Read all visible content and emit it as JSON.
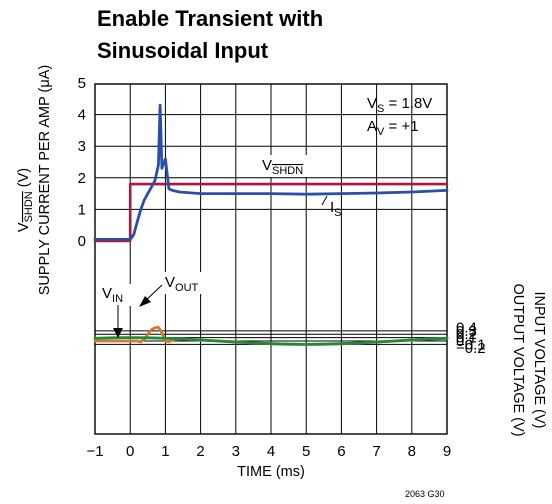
{
  "chart_data": {
    "type": "line",
    "title_lines": [
      "Enable Transient with",
      "Sinusoidal Input"
    ],
    "xlabel": "TIME (ms)",
    "xlim": [
      -1,
      9
    ],
    "x_ticks": [
      "−1",
      "0",
      "1",
      "2",
      "3",
      "4",
      "5",
      "6",
      "7",
      "8",
      "9"
    ],
    "y_left": {
      "label_top": {
        "pre": "V",
        "sub": "SHDN",
        "post": " (V)"
      },
      "label_bottom": "SUPPLY CURRENT PER AMP (μA)",
      "ticks": [
        "0",
        "1",
        "2",
        "3",
        "4",
        "5"
      ],
      "range": [
        0,
        5
      ]
    },
    "y_right": {
      "label_top": "INPUT VOLTAGE (V)",
      "label_bottom": "OUTPUT VOLTAGE (V)",
      "ticks": [
        "0.4",
        "0.3",
        "0.2",
        "0.1",
        "0",
        "−0.1",
        "−0.2"
      ],
      "range": [
        -0.2,
        0.4
      ]
    },
    "grid": true,
    "conditions": {
      "vs": {
        "pre": "V",
        "sub": "S",
        "post": " = 1.8V"
      },
      "av": {
        "pre": "A",
        "sub": "V",
        "post": " = +1"
      }
    },
    "annotations": {
      "vshdn": {
        "pre": "V",
        "sub": "SHDN"
      },
      "is": {
        "pre": "I",
        "sub": "S"
      },
      "vin": {
        "pre": "V",
        "sub": "IN"
      },
      "vout": {
        "pre": "V",
        "sub": "OUT"
      }
    },
    "series": [
      {
        "key": "vshdn",
        "axis": "left",
        "color": "#b0143c",
        "x": [
          -1,
          0,
          0,
          9
        ],
        "y": [
          0,
          0,
          1.8,
          1.8
        ]
      },
      {
        "key": "is",
        "axis": "left",
        "color": "#2a4fa8",
        "x": [
          -1,
          -0.5,
          0,
          0.1,
          0.2,
          0.3,
          0.4,
          0.5,
          0.6,
          0.7,
          0.8,
          0.85,
          0.9,
          1.0,
          1.1,
          1.2,
          1.4,
          2,
          3,
          4,
          5,
          6,
          7,
          8,
          9
        ],
        "y": [
          0.05,
          0.05,
          0.05,
          0.2,
          0.6,
          1.0,
          1.3,
          1.5,
          1.7,
          1.9,
          2.4,
          4.3,
          2.3,
          2.6,
          1.65,
          1.6,
          1.55,
          1.5,
          1.5,
          1.5,
          1.48,
          1.5,
          1.52,
          1.55,
          1.6
        ]
      },
      {
        "key": "vin",
        "axis": "right",
        "color": "#1f8a3a",
        "x": [
          -1,
          -0.5,
          0,
          0.5,
          1,
          1.5,
          2,
          2.5,
          3,
          3.5,
          4,
          4.5,
          5,
          5.5,
          6,
          6.5,
          7,
          7.5,
          8,
          8.5,
          9
        ],
        "y": [
          0.081,
          0.095,
          0.1,
          0.095,
          0.081,
          0.059,
          0.031,
          0,
          -0.031,
          -0.059,
          -0.081,
          -0.095,
          -0.1,
          -0.095,
          -0.081,
          -0.059,
          -0.031,
          0,
          0.031,
          0.059,
          0.081
        ]
      },
      {
        "key": "vout",
        "axis": "right",
        "color": "#d07a2a",
        "x": [
          -1,
          0.2,
          0.3,
          0.35,
          0.4,
          0.5,
          0.6,
          0.7,
          0.78,
          0.82,
          0.9,
          1.0,
          1.1,
          1.2,
          1.3,
          1.5,
          2,
          2.5,
          3,
          3.5,
          4,
          4.5,
          5,
          5.5,
          6,
          6.5,
          7,
          7.5,
          8,
          8.5,
          9
        ],
        "y": [
          0,
          0,
          -0.03,
          0.02,
          0.04,
          0.2,
          0.33,
          0.39,
          0.41,
          0.38,
          0.24,
          0.0,
          -0.02,
          0.03,
          0.05,
          0.059,
          0.031,
          0,
          -0.031,
          -0.059,
          -0.081,
          -0.095,
          -0.1,
          -0.095,
          -0.081,
          -0.059,
          -0.031,
          0,
          0.031,
          0.059,
          0.081
        ]
      }
    ]
  },
  "figure_code": "2063 G30"
}
